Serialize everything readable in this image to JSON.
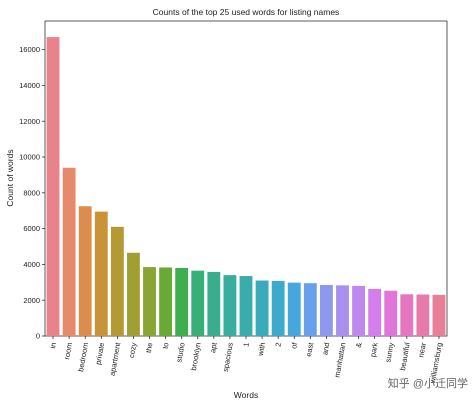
{
  "chart_data": {
    "type": "bar",
    "title": "Counts of the top 25 used words for listing names",
    "xlabel": "Words",
    "ylabel": "Count of words",
    "categories": [
      "in",
      "room",
      "bedroom",
      "private",
      "apartment",
      "cozy",
      "the",
      "to",
      "studio",
      "brooklyn",
      "apt",
      "spacious",
      "1",
      "with",
      "2",
      "of",
      "east",
      "and",
      "manhattan",
      "&",
      "park",
      "sunny",
      "beautiful",
      "near",
      "williamsburg"
    ],
    "values": [
      16700,
      9400,
      7250,
      6950,
      6100,
      4650,
      3850,
      3830,
      3800,
      3650,
      3580,
      3400,
      3350,
      3100,
      3080,
      2980,
      2950,
      2850,
      2830,
      2800,
      2630,
      2530,
      2330,
      2320,
      2300
    ],
    "yticks": [
      0,
      2000,
      4000,
      6000,
      8000,
      10000,
      12000,
      14000,
      16000
    ],
    "ylim": [
      0,
      17600
    ],
    "grid": false,
    "colors": [
      "#e8838c",
      "#e58a6c",
      "#dc8c4c",
      "#c99437",
      "#b59a33",
      "#a19f34",
      "#8aa533",
      "#6aaa34",
      "#3eae4f",
      "#37af78",
      "#38ae8f",
      "#39ad9e",
      "#3aacac",
      "#3babbb",
      "#3daacd",
      "#45a7de",
      "#69a0ec",
      "#8c99ef",
      "#a891ee",
      "#c088ee",
      "#d67ded",
      "#e275d9",
      "#e576c0",
      "#e67aab",
      "#e77f99"
    ]
  },
  "watermark": "知乎 @小迁同学"
}
